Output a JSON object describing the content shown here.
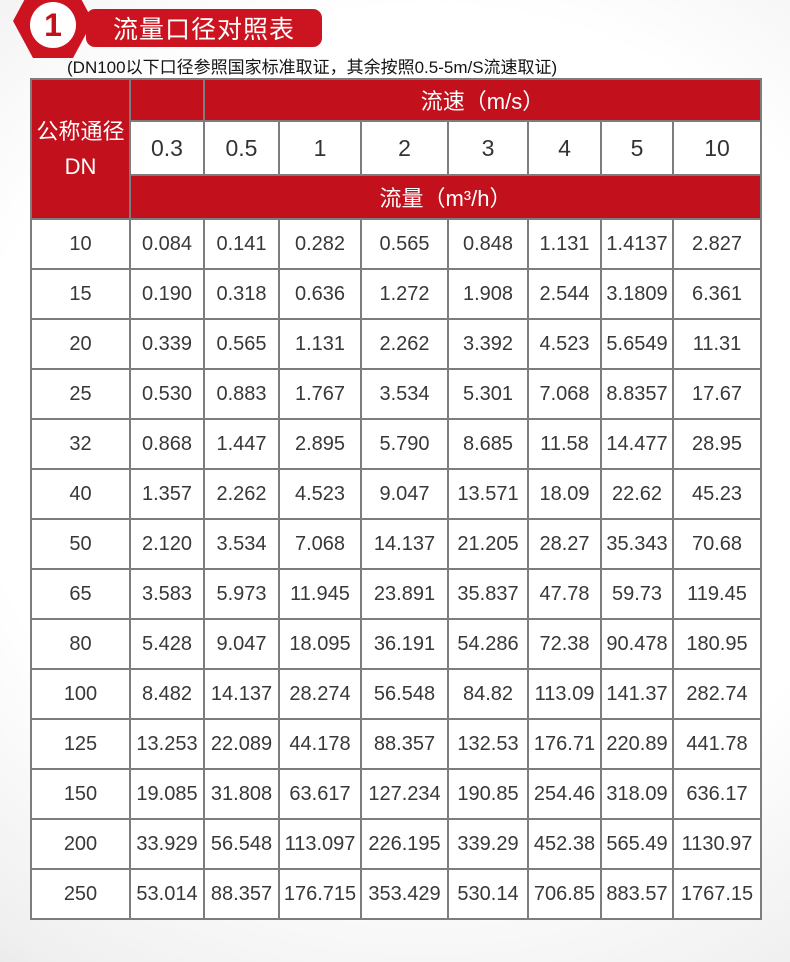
{
  "header": {
    "badge_number": "1",
    "title": "流量口径对照表",
    "subtitle": "(DN100以下口径参照国家标准取证，其余按照0.5-5m/S流速取证)"
  },
  "table": {
    "corner": {
      "line1": "公称通径",
      "line2": "DN"
    },
    "velocity_band_label": "流速（m/s）",
    "flow_band_label": "流量（m³/h）",
    "velocity_columns": [
      "0.3",
      "0.5",
      "1",
      "2",
      "3",
      "4",
      "5",
      "10"
    ],
    "rows": [
      {
        "dn": "10",
        "flows": [
          "0.084",
          "0.141",
          "0.282",
          "0.565",
          "0.848",
          "1.131",
          "1.4137",
          "2.827"
        ]
      },
      {
        "dn": "15",
        "flows": [
          "0.190",
          "0.318",
          "0.636",
          "1.272",
          "1.908",
          "2.544",
          "3.1809",
          "6.361"
        ]
      },
      {
        "dn": "20",
        "flows": [
          "0.339",
          "0.565",
          "1.131",
          "2.262",
          "3.392",
          "4.523",
          "5.6549",
          "11.31"
        ]
      },
      {
        "dn": "25",
        "flows": [
          "0.530",
          "0.883",
          "1.767",
          "3.534",
          "5.301",
          "7.068",
          "8.8357",
          "17.67"
        ]
      },
      {
        "dn": "32",
        "flows": [
          "0.868",
          "1.447",
          "2.895",
          "5.790",
          "8.685",
          "11.58",
          "14.477",
          "28.95"
        ]
      },
      {
        "dn": "40",
        "flows": [
          "1.357",
          "2.262",
          "4.523",
          "9.047",
          "13.571",
          "18.09",
          "22.62",
          "45.23"
        ]
      },
      {
        "dn": "50",
        "flows": [
          "2.120",
          "3.534",
          "7.068",
          "14.137",
          "21.205",
          "28.27",
          "35.343",
          "70.68"
        ]
      },
      {
        "dn": "65",
        "flows": [
          "3.583",
          "5.973",
          "11.945",
          "23.891",
          "35.837",
          "47.78",
          "59.73",
          "119.45"
        ]
      },
      {
        "dn": "80",
        "flows": [
          "5.428",
          "9.047",
          "18.095",
          "36.191",
          "54.286",
          "72.38",
          "90.478",
          "180.95"
        ]
      },
      {
        "dn": "100",
        "flows": [
          "8.482",
          "14.137",
          "28.274",
          "56.548",
          "84.82",
          "113.09",
          "141.37",
          "282.74"
        ]
      },
      {
        "dn": "125",
        "flows": [
          "13.253",
          "22.089",
          "44.178",
          "88.357",
          "132.53",
          "176.71",
          "220.89",
          "441.78"
        ]
      },
      {
        "dn": "150",
        "flows": [
          "19.085",
          "31.808",
          "63.617",
          "127.234",
          "190.85",
          "254.46",
          "318.09",
          "636.17"
        ]
      },
      {
        "dn": "200",
        "flows": [
          "33.929",
          "56.548",
          "113.097",
          "226.195",
          "339.29",
          "452.38",
          "565.49",
          "1130.97"
        ]
      },
      {
        "dn": "250",
        "flows": [
          "53.014",
          "88.357",
          "176.715",
          "353.429",
          "530.14",
          "706.85",
          "883.57",
          "1767.15"
        ]
      }
    ]
  },
  "colors": {
    "accent_red": "#c2101c",
    "badge_red": "#cb1420",
    "border_gray": "#7d7d7d",
    "text_dark": "#383838"
  }
}
